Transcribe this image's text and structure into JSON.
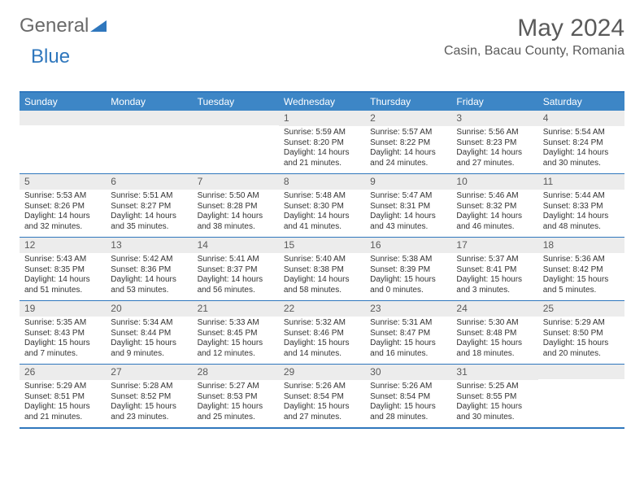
{
  "logo": {
    "text1": "General",
    "text2": "Blue"
  },
  "title": "May 2024",
  "location": "Casin, Bacau County, Romania",
  "colors": {
    "header_bg": "#3d86c6",
    "border": "#2f77bd",
    "daynum_bg": "#ececec",
    "text": "#333333",
    "muted": "#5a5a5a"
  },
  "dow": [
    "Sunday",
    "Monday",
    "Tuesday",
    "Wednesday",
    "Thursday",
    "Friday",
    "Saturday"
  ],
  "weeks": [
    [
      null,
      null,
      null,
      {
        "n": "1",
        "sr": "5:59 AM",
        "ss": "8:20 PM",
        "dl": "14 hours and 21 minutes."
      },
      {
        "n": "2",
        "sr": "5:57 AM",
        "ss": "8:22 PM",
        "dl": "14 hours and 24 minutes."
      },
      {
        "n": "3",
        "sr": "5:56 AM",
        "ss": "8:23 PM",
        "dl": "14 hours and 27 minutes."
      },
      {
        "n": "4",
        "sr": "5:54 AM",
        "ss": "8:24 PM",
        "dl": "14 hours and 30 minutes."
      }
    ],
    [
      {
        "n": "5",
        "sr": "5:53 AM",
        "ss": "8:26 PM",
        "dl": "14 hours and 32 minutes."
      },
      {
        "n": "6",
        "sr": "5:51 AM",
        "ss": "8:27 PM",
        "dl": "14 hours and 35 minutes."
      },
      {
        "n": "7",
        "sr": "5:50 AM",
        "ss": "8:28 PM",
        "dl": "14 hours and 38 minutes."
      },
      {
        "n": "8",
        "sr": "5:48 AM",
        "ss": "8:30 PM",
        "dl": "14 hours and 41 minutes."
      },
      {
        "n": "9",
        "sr": "5:47 AM",
        "ss": "8:31 PM",
        "dl": "14 hours and 43 minutes."
      },
      {
        "n": "10",
        "sr": "5:46 AM",
        "ss": "8:32 PM",
        "dl": "14 hours and 46 minutes."
      },
      {
        "n": "11",
        "sr": "5:44 AM",
        "ss": "8:33 PM",
        "dl": "14 hours and 48 minutes."
      }
    ],
    [
      {
        "n": "12",
        "sr": "5:43 AM",
        "ss": "8:35 PM",
        "dl": "14 hours and 51 minutes."
      },
      {
        "n": "13",
        "sr": "5:42 AM",
        "ss": "8:36 PM",
        "dl": "14 hours and 53 minutes."
      },
      {
        "n": "14",
        "sr": "5:41 AM",
        "ss": "8:37 PM",
        "dl": "14 hours and 56 minutes."
      },
      {
        "n": "15",
        "sr": "5:40 AM",
        "ss": "8:38 PM",
        "dl": "14 hours and 58 minutes."
      },
      {
        "n": "16",
        "sr": "5:38 AM",
        "ss": "8:39 PM",
        "dl": "15 hours and 0 minutes."
      },
      {
        "n": "17",
        "sr": "5:37 AM",
        "ss": "8:41 PM",
        "dl": "15 hours and 3 minutes."
      },
      {
        "n": "18",
        "sr": "5:36 AM",
        "ss": "8:42 PM",
        "dl": "15 hours and 5 minutes."
      }
    ],
    [
      {
        "n": "19",
        "sr": "5:35 AM",
        "ss": "8:43 PM",
        "dl": "15 hours and 7 minutes."
      },
      {
        "n": "20",
        "sr": "5:34 AM",
        "ss": "8:44 PM",
        "dl": "15 hours and 9 minutes."
      },
      {
        "n": "21",
        "sr": "5:33 AM",
        "ss": "8:45 PM",
        "dl": "15 hours and 12 minutes."
      },
      {
        "n": "22",
        "sr": "5:32 AM",
        "ss": "8:46 PM",
        "dl": "15 hours and 14 minutes."
      },
      {
        "n": "23",
        "sr": "5:31 AM",
        "ss": "8:47 PM",
        "dl": "15 hours and 16 minutes."
      },
      {
        "n": "24",
        "sr": "5:30 AM",
        "ss": "8:48 PM",
        "dl": "15 hours and 18 minutes."
      },
      {
        "n": "25",
        "sr": "5:29 AM",
        "ss": "8:50 PM",
        "dl": "15 hours and 20 minutes."
      }
    ],
    [
      {
        "n": "26",
        "sr": "5:29 AM",
        "ss": "8:51 PM",
        "dl": "15 hours and 21 minutes."
      },
      {
        "n": "27",
        "sr": "5:28 AM",
        "ss": "8:52 PM",
        "dl": "15 hours and 23 minutes."
      },
      {
        "n": "28",
        "sr": "5:27 AM",
        "ss": "8:53 PM",
        "dl": "15 hours and 25 minutes."
      },
      {
        "n": "29",
        "sr": "5:26 AM",
        "ss": "8:54 PM",
        "dl": "15 hours and 27 minutes."
      },
      {
        "n": "30",
        "sr": "5:26 AM",
        "ss": "8:54 PM",
        "dl": "15 hours and 28 minutes."
      },
      {
        "n": "31",
        "sr": "5:25 AM",
        "ss": "8:55 PM",
        "dl": "15 hours and 30 minutes."
      },
      null
    ]
  ],
  "labels": {
    "sunrise": "Sunrise: ",
    "sunset": "Sunset: ",
    "daylight": "Daylight: "
  }
}
